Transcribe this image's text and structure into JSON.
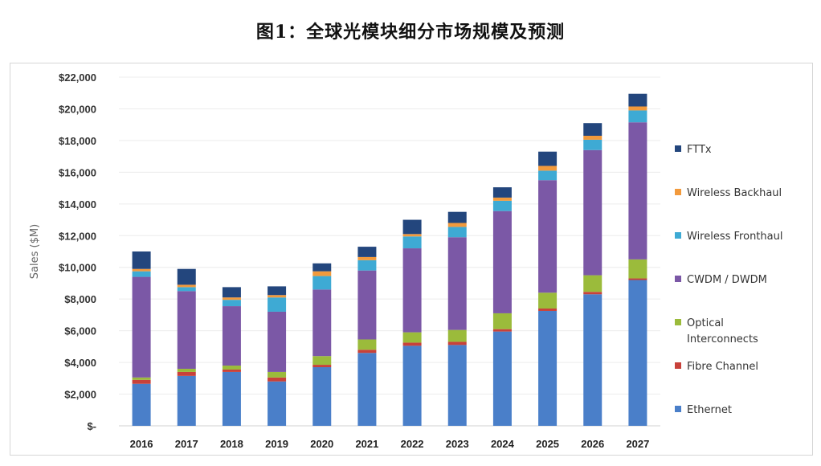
{
  "title": "图1：全球光模块细分市场规模及预测",
  "chart_data": {
    "type": "bar",
    "stacked": true,
    "title": "图1：全球光模块细分市场规模及预测",
    "xlabel": "",
    "ylabel": "Sales ($M)",
    "ylim": [
      0,
      22000
    ],
    "yticks": [
      "$-",
      "$2,000",
      "$4,000",
      "$6,000",
      "$8,000",
      "$10,000",
      "$12,000",
      "$14,000",
      "$16,000",
      "$18,000",
      "$20,000",
      "$22,000"
    ],
    "grid": true,
    "legend_position": "right",
    "categories": [
      "2016",
      "2017",
      "2018",
      "2019",
      "2020",
      "2021",
      "2022",
      "2023",
      "2024",
      "2025",
      "2026",
      "2027"
    ],
    "series": [
      {
        "name": "Ethernet",
        "color": "#4a7fc9",
        "values": [
          2650,
          3150,
          3400,
          2800,
          3700,
          4600,
          5050,
          5100,
          5950,
          7250,
          8300,
          9200
        ]
      },
      {
        "name": "Fibre Channel",
        "color": "#c8413a",
        "values": [
          250,
          250,
          150,
          250,
          150,
          200,
          200,
          200,
          150,
          150,
          150,
          100
        ]
      },
      {
        "name": "Optical Interconnects",
        "color": "#9bbb3b",
        "values": [
          150,
          200,
          250,
          350,
          550,
          650,
          650,
          750,
          1000,
          1000,
          1050,
          1200
        ]
      },
      {
        "name": "CWDM / DWDM",
        "color": "#7b58a6",
        "values": [
          6350,
          4900,
          3750,
          3800,
          4200,
          4350,
          5300,
          5850,
          6450,
          7100,
          7900,
          8650
        ]
      },
      {
        "name": "Wireless Fronthaul",
        "color": "#3eaad4",
        "values": [
          350,
          250,
          400,
          900,
          850,
          650,
          750,
          650,
          650,
          600,
          650,
          750
        ]
      },
      {
        "name": "Wireless Backhaul",
        "color": "#f29a3c",
        "values": [
          150,
          150,
          150,
          150,
          300,
          200,
          150,
          250,
          200,
          300,
          250,
          250
        ]
      },
      {
        "name": "FTTx",
        "color": "#23467d",
        "values": [
          1100,
          1000,
          650,
          550,
          500,
          650,
          900,
          700,
          650,
          900,
          800,
          800
        ]
      }
    ],
    "legend_order": [
      "FTTx",
      "Wireless Backhaul",
      "Wireless Fronthaul",
      "CWDM / DWDM",
      "Optical Interconnects",
      "Fibre Channel",
      "Ethernet"
    ]
  }
}
